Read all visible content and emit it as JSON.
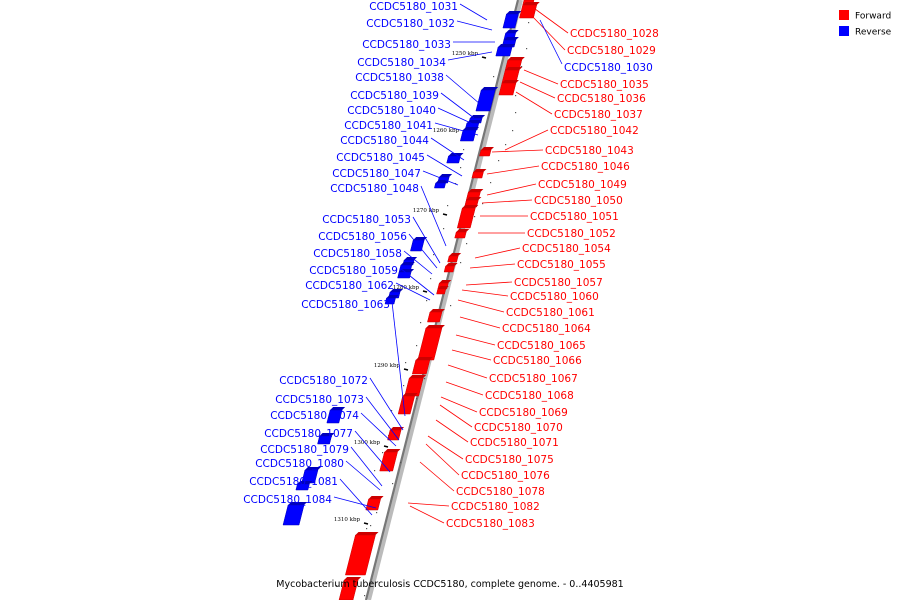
{
  "caption": "Mycobacterium tuberculosis CCDC5180, complete genome. - 0..4405981",
  "legend": {
    "forward_label": "Forward",
    "reverse_label": "Reverse"
  },
  "colors": {
    "forward": "#ff0000",
    "reverse": "#0000ff",
    "axis": "#777777"
  },
  "scale_ticks": [
    "1250 kbp",
    "1260 kbp",
    "1270 kbp",
    "1280 kbp",
    "1290 kbp",
    "1300 kbp",
    "1310 kbp"
  ],
  "reverse_genes": [
    "CCDC5180_1031",
    "CCDC5180_1032",
    "CCDC5180_1033",
    "CCDC5180_1034",
    "CCDC5180_1038",
    "CCDC5180_1039",
    "CCDC5180_1040",
    "CCDC5180_1041",
    "CCDC5180_1044",
    "CCDC5180_1045",
    "CCDC5180_1047",
    "CCDC5180_1048",
    "CCDC5180_1053",
    "CCDC5180_1056",
    "CCDC5180_1058",
    "CCDC5180_1059",
    "CCDC5180_1062",
    "CCDC5180_1063",
    "CCDC5180_1072",
    "CCDC5180_1073",
    "CCDC5180_1074",
    "CCDC5180_1077",
    "CCDC5180_1079",
    "CCDC5180_1080",
    "CCDC5180_1081",
    "CCDC5180_1084"
  ],
  "forward_genes": [
    "CCDC5180_1028",
    "CCDC5180_1029",
    "CCDC5180_1035",
    "CCDC5180_1036",
    "CCDC5180_1037",
    "CCDC5180_1042",
    "CCDC5180_1043",
    "CCDC5180_1046",
    "CCDC5180_1049",
    "CCDC5180_1050",
    "CCDC5180_1051",
    "CCDC5180_1052",
    "CCDC5180_1054",
    "CCDC5180_1055",
    "CCDC5180_1057",
    "CCDC5180_1060",
    "CCDC5180_1061",
    "CCDC5180_1064",
    "CCDC5180_1065",
    "CCDC5180_1066",
    "CCDC5180_1067",
    "CCDC5180_1068",
    "CCDC5180_1069",
    "CCDC5180_1070",
    "CCDC5180_1071",
    "CCDC5180_1075",
    "CCDC5180_1076",
    "CCDC5180_1078",
    "CCDC5180_1082",
    "CCDC5180_1083"
  ],
  "right_blue_genes": [
    "CCDC5180_1030"
  ]
}
